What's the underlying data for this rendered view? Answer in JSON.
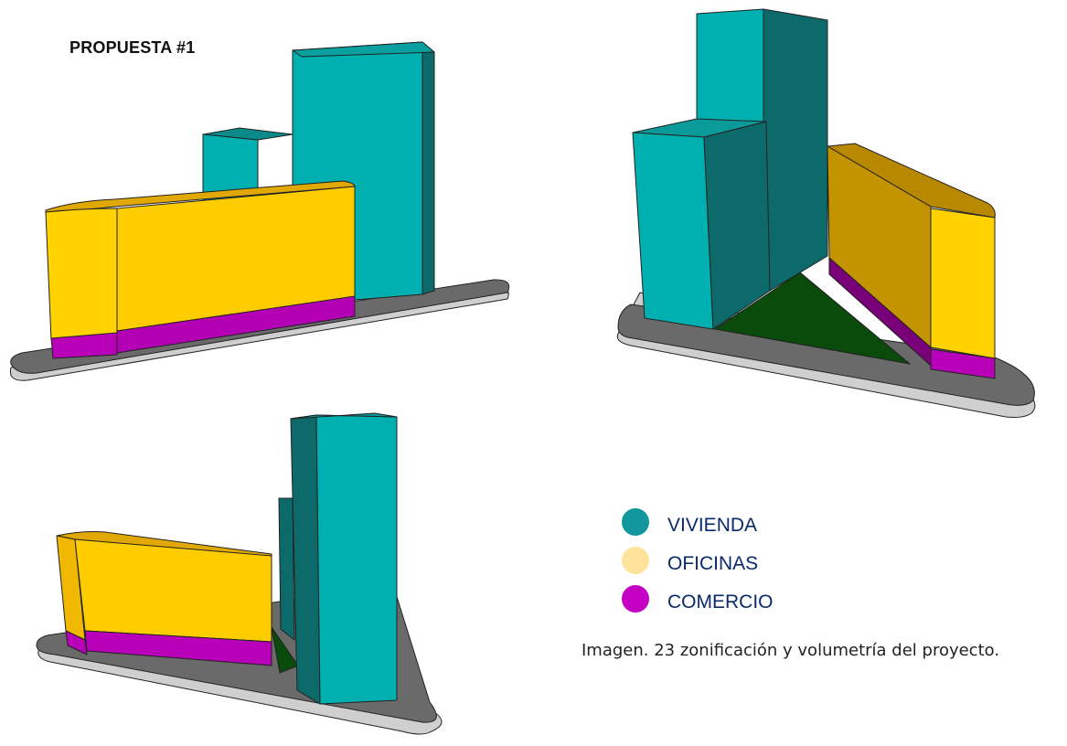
{
  "title": "PROPUESTA #1",
  "legend": [
    {
      "label": "VIVIENDA",
      "color": "#12989c"
    },
    {
      "label": "OFICINAS",
      "color": "#fde49a"
    },
    {
      "label": "COMERCIO",
      "color": "#c500c5"
    }
  ],
  "caption": "Imagen. 23 zonificación y volumetría del proyecto.",
  "colors": {
    "vivienda_light": "#00b0b0",
    "vivienda_dark": "#0c6a6a",
    "oficinas": "#ffd000",
    "oficinas_dark": "#c49300",
    "comercio": "#b800b8",
    "plaza": "#0a4a0a",
    "base_top": "#6a6a6a",
    "base_side": "#cfcfcf"
  },
  "views": [
    "view-1",
    "view-2",
    "view-3"
  ]
}
